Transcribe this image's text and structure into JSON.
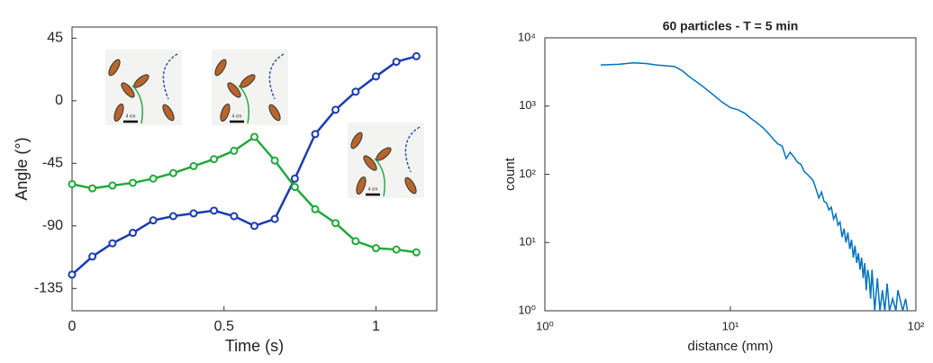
{
  "chart_data": [
    {
      "type": "line",
      "xlabel": "Time (s)",
      "ylabel": "Angle (°)",
      "x": [
        0,
        0.067,
        0.133,
        0.2,
        0.267,
        0.333,
        0.4,
        0.467,
        0.533,
        0.6,
        0.667,
        0.733,
        0.8,
        0.867,
        0.933,
        1.0,
        1.067,
        1.133
      ],
      "series": [
        {
          "color": "#1c3cae",
          "values": [
            -125,
            -112,
            -102.5,
            -95,
            -86,
            -83,
            -81,
            -79,
            -83,
            -90,
            -85,
            -56,
            -24,
            -6.5,
            6.5,
            17.5,
            28,
            32
          ]
        },
        {
          "color": "#22a83a",
          "values": [
            -60,
            -63,
            -61,
            -59,
            -56,
            -52,
            -47,
            -42,
            -36,
            -26,
            -43,
            -62,
            -78,
            -88,
            -101,
            -106,
            -107,
            -109
          ]
        }
      ],
      "xlim": [
        0,
        1.2
      ],
      "xticks": [
        0,
        0.5,
        1
      ],
      "ylim": [
        -151,
        53
      ],
      "yticks": [
        -135,
        -90,
        -45,
        0,
        45
      ],
      "insets": [
        {
          "scale_label": "4 cm"
        },
        {
          "scale_label": "4 cm"
        },
        {
          "scale_label": "4 cm"
        }
      ]
    },
    {
      "type": "line",
      "title": "60 particles - T = 5 min",
      "xlabel": "distance (mm)",
      "ylabel": "count",
      "xscale": "log",
      "yscale": "log",
      "x": [
        2,
        2.5,
        3,
        3.5,
        4,
        5,
        5.5,
        6,
        7,
        8,
        9,
        10,
        11,
        12,
        13,
        14,
        15,
        16,
        17,
        18,
        19,
        20,
        21,
        22,
        23,
        24,
        25,
        26,
        27,
        28,
        29,
        30,
        31,
        32,
        33,
        34,
        35,
        36,
        37,
        38,
        39,
        40,
        41,
        42,
        43,
        44,
        45,
        46,
        47,
        48,
        49,
        50,
        51,
        52,
        53,
        54,
        55,
        56,
        57,
        58,
        59,
        60,
        62,
        64,
        66,
        68,
        70,
        72,
        75,
        78,
        80,
        85,
        88,
        90
      ],
      "series": [
        {
          "color": "#0072bd",
          "values": [
            4000,
            4100,
            4300,
            4200,
            4000,
            3800,
            3300,
            2700,
            2000,
            1500,
            1150,
            950,
            880,
            780,
            650,
            560,
            480,
            400,
            330,
            280,
            260,
            170,
            210,
            180,
            150,
            140,
            110,
            100,
            90,
            80,
            60,
            45,
            55,
            40,
            38,
            30,
            33,
            22,
            26,
            18,
            20,
            12,
            16,
            10,
            14,
            8,
            11,
            6,
            9,
            5,
            7,
            4,
            6,
            3,
            5,
            2,
            4,
            3,
            1.5,
            4,
            2,
            1,
            3,
            1,
            2,
            1,
            2.5,
            1,
            1.5,
            1,
            2,
            1,
            1.5,
            1
          ]
        }
      ],
      "xlim": [
        1,
        100
      ],
      "xticks": [
        {
          "value": 1,
          "label": "10⁰"
        },
        {
          "value": 10,
          "label": "10¹"
        },
        {
          "value": 100,
          "label": "10²"
        }
      ],
      "ylim": [
        1,
        10000
      ],
      "yticks": [
        {
          "value": 1,
          "label": "10⁰"
        },
        {
          "value": 10,
          "label": "10¹"
        },
        {
          "value": 100,
          "label": "10²"
        },
        {
          "value": 1000,
          "label": "10³"
        },
        {
          "value": 10000,
          "label": "10⁴"
        }
      ]
    }
  ]
}
